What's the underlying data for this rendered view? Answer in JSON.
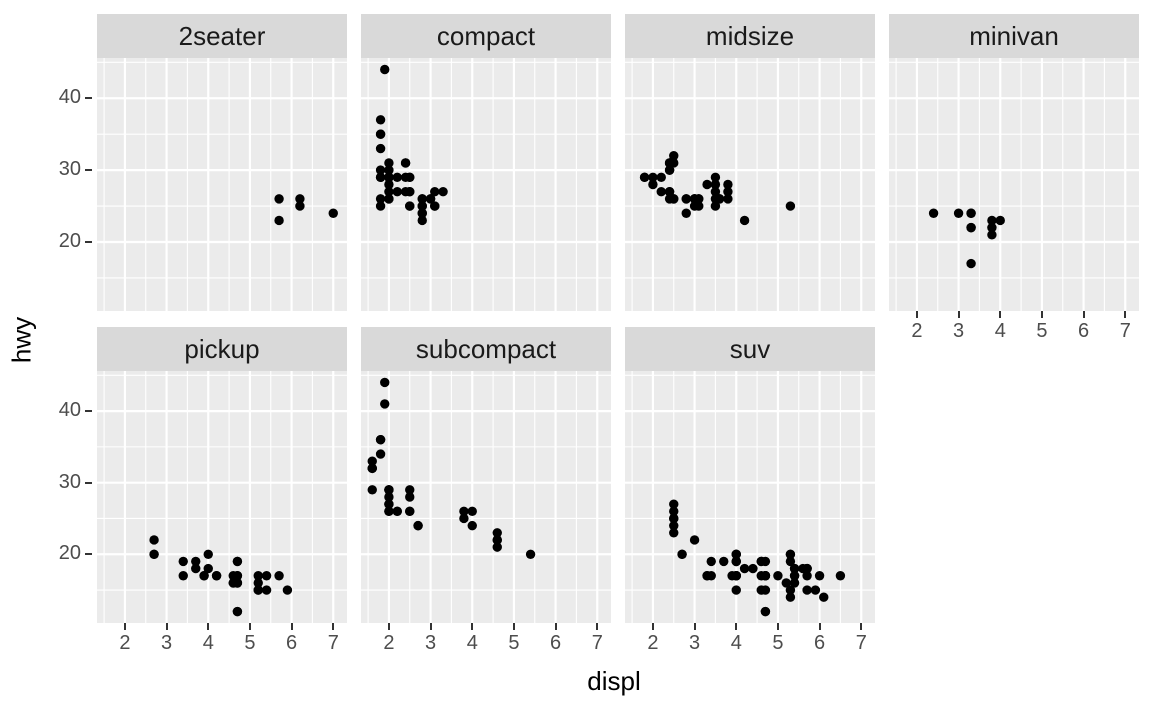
{
  "chart_data": {
    "type": "scatter",
    "title": "",
    "xlabel": "displ",
    "ylabel": "hwy",
    "facet_by": "class",
    "legend": "none",
    "grid": true,
    "xlim": [
      1.33,
      7.33
    ],
    "ylim": [
      10.4,
      45.6
    ],
    "x_ticks": [
      2,
      3,
      4,
      5,
      6,
      7
    ],
    "y_ticks": [
      20,
      30,
      40
    ],
    "x_minor_ticks": [
      1.5,
      2.5,
      3.5,
      4.5,
      5.5,
      6.5
    ],
    "y_minor_ticks": [
      15,
      25,
      35,
      45
    ],
    "facets": [
      {
        "label": "2seater",
        "points": [
          [
            5.7,
            26
          ],
          [
            5.7,
            23
          ],
          [
            6.2,
            26
          ],
          [
            6.2,
            25
          ],
          [
            7.0,
            24
          ]
        ]
      },
      {
        "label": "compact",
        "points": [
          [
            1.8,
            29
          ],
          [
            1.8,
            29
          ],
          [
            2.0,
            31
          ],
          [
            2.0,
            30
          ],
          [
            2.8,
            26
          ],
          [
            2.8,
            26
          ],
          [
            3.1,
            27
          ],
          [
            1.8,
            26
          ],
          [
            1.8,
            25
          ],
          [
            2.0,
            28
          ],
          [
            2.0,
            27
          ],
          [
            2.8,
            25
          ],
          [
            2.8,
            25
          ],
          [
            3.1,
            25
          ],
          [
            3.1,
            25
          ],
          [
            2.4,
            29
          ],
          [
            2.4,
            27
          ],
          [
            2.5,
            25
          ],
          [
            2.5,
            27
          ],
          [
            2.5,
            25
          ],
          [
            2.5,
            27
          ],
          [
            2.2,
            27
          ],
          [
            2.2,
            29
          ],
          [
            2.4,
            31
          ],
          [
            2.4,
            31
          ],
          [
            3.0,
            26
          ],
          [
            3.0,
            26
          ],
          [
            3.3,
            27
          ],
          [
            1.8,
            30
          ],
          [
            1.8,
            33
          ],
          [
            1.8,
            35
          ],
          [
            1.8,
            37
          ],
          [
            1.8,
            35
          ],
          [
            2.0,
            29
          ],
          [
            2.0,
            26
          ],
          [
            2.0,
            29
          ],
          [
            2.0,
            29
          ],
          [
            2.8,
            24
          ],
          [
            1.9,
            44
          ],
          [
            2.0,
            29
          ],
          [
            2.0,
            26
          ],
          [
            2.0,
            29
          ],
          [
            2.0,
            29
          ],
          [
            2.5,
            29
          ],
          [
            2.5,
            29
          ],
          [
            2.8,
            23
          ],
          [
            2.8,
            24
          ]
        ]
      },
      {
        "label": "midsize",
        "points": [
          [
            2.8,
            24
          ],
          [
            3.1,
            25
          ],
          [
            4.2,
            23
          ],
          [
            2.4,
            27
          ],
          [
            2.4,
            30
          ],
          [
            3.1,
            26
          ],
          [
            3.5,
            29
          ],
          [
            3.6,
            26
          ],
          [
            2.4,
            26
          ],
          [
            2.4,
            27
          ],
          [
            2.4,
            30
          ],
          [
            2.4,
            31
          ],
          [
            2.5,
            26
          ],
          [
            2.5,
            26
          ],
          [
            3.3,
            28
          ],
          [
            2.5,
            31
          ],
          [
            2.5,
            32
          ],
          [
            3.5,
            27
          ],
          [
            3.5,
            26
          ],
          [
            3.0,
            26
          ],
          [
            3.0,
            25
          ],
          [
            3.5,
            25
          ],
          [
            3.1,
            26
          ],
          [
            3.8,
            26
          ],
          [
            3.8,
            27
          ],
          [
            3.8,
            28
          ],
          [
            5.3,
            25
          ],
          [
            2.2,
            29
          ],
          [
            2.2,
            27
          ],
          [
            2.4,
            31
          ],
          [
            2.4,
            31
          ],
          [
            3.0,
            26
          ],
          [
            3.0,
            26
          ],
          [
            3.5,
            28
          ],
          [
            1.8,
            29
          ],
          [
            1.8,
            29
          ],
          [
            2.0,
            28
          ],
          [
            2.0,
            29
          ],
          [
            2.8,
            26
          ],
          [
            2.8,
            26
          ],
          [
            3.6,
            26
          ]
        ]
      },
      {
        "label": "minivan",
        "points": [
          [
            2.4,
            24
          ],
          [
            3.0,
            24
          ],
          [
            3.3,
            22
          ],
          [
            3.3,
            22
          ],
          [
            3.3,
            24
          ],
          [
            3.3,
            24
          ],
          [
            3.3,
            17
          ],
          [
            3.8,
            22
          ],
          [
            3.8,
            21
          ],
          [
            3.8,
            23
          ],
          [
            4.0,
            23
          ]
        ]
      },
      {
        "label": "pickup",
        "points": [
          [
            3.7,
            19
          ],
          [
            3.7,
            18
          ],
          [
            3.9,
            17
          ],
          [
            3.9,
            17
          ],
          [
            4.7,
            19
          ],
          [
            4.7,
            19
          ],
          [
            4.7,
            12
          ],
          [
            5.2,
            17
          ],
          [
            5.2,
            15
          ],
          [
            4.7,
            16
          ],
          [
            4.7,
            12
          ],
          [
            4.7,
            17
          ],
          [
            4.7,
            17
          ],
          [
            4.7,
            16
          ],
          [
            4.7,
            16
          ],
          [
            5.2,
            15
          ],
          [
            5.2,
            16
          ],
          [
            5.7,
            17
          ],
          [
            5.9,
            15
          ],
          [
            4.2,
            17
          ],
          [
            4.2,
            17
          ],
          [
            4.6,
            16
          ],
          [
            4.6,
            16
          ],
          [
            4.6,
            17
          ],
          [
            5.4,
            15
          ],
          [
            5.4,
            17
          ],
          [
            2.7,
            20
          ],
          [
            2.7,
            20
          ],
          [
            2.7,
            22
          ],
          [
            3.4,
            17
          ],
          [
            3.4,
            19
          ],
          [
            4.0,
            18
          ],
          [
            4.0,
            20
          ]
        ]
      },
      {
        "label": "subcompact",
        "points": [
          [
            3.8,
            26
          ],
          [
            3.8,
            25
          ],
          [
            4.0,
            26
          ],
          [
            4.0,
            24
          ],
          [
            4.6,
            21
          ],
          [
            4.6,
            22
          ],
          [
            4.6,
            23
          ],
          [
            4.6,
            22
          ],
          [
            5.4,
            20
          ],
          [
            1.6,
            33
          ],
          [
            1.6,
            32
          ],
          [
            1.6,
            32
          ],
          [
            1.6,
            29
          ],
          [
            1.6,
            32
          ],
          [
            1.8,
            34
          ],
          [
            1.8,
            36
          ],
          [
            1.8,
            36
          ],
          [
            2.0,
            29
          ],
          [
            2.0,
            26
          ],
          [
            2.0,
            29
          ],
          [
            2.0,
            28
          ],
          [
            2.0,
            27
          ],
          [
            2.0,
            27
          ],
          [
            2.7,
            24
          ],
          [
            2.7,
            24
          ],
          [
            2.2,
            26
          ],
          [
            2.2,
            26
          ],
          [
            2.5,
            26
          ],
          [
            2.5,
            26
          ],
          [
            1.9,
            44
          ],
          [
            1.9,
            41
          ],
          [
            2.0,
            29
          ],
          [
            2.0,
            26
          ],
          [
            2.5,
            28
          ],
          [
            2.5,
            29
          ]
        ]
      },
      {
        "label": "suv",
        "points": [
          [
            5.3,
            20
          ],
          [
            5.3,
            15
          ],
          [
            5.3,
            20
          ],
          [
            5.7,
            17
          ],
          [
            6.0,
            17
          ],
          [
            5.3,
            19
          ],
          [
            5.3,
            14
          ],
          [
            5.7,
            15
          ],
          [
            6.5,
            17
          ],
          [
            3.9,
            17
          ],
          [
            4.7,
            17
          ],
          [
            4.7,
            12
          ],
          [
            4.7,
            17
          ],
          [
            5.2,
            16
          ],
          [
            5.7,
            18
          ],
          [
            5.9,
            15
          ],
          [
            4.6,
            17
          ],
          [
            5.4,
            17
          ],
          [
            5.4,
            18
          ],
          [
            4.0,
            17
          ],
          [
            4.0,
            19
          ],
          [
            4.0,
            17
          ],
          [
            4.0,
            19
          ],
          [
            4.6,
            19
          ],
          [
            4.0,
            17
          ],
          [
            3.0,
            22
          ],
          [
            3.7,
            19
          ],
          [
            4.0,
            20
          ],
          [
            4.7,
            17
          ],
          [
            4.7,
            12
          ],
          [
            4.7,
            19
          ],
          [
            5.7,
            18
          ],
          [
            6.1,
            14
          ],
          [
            4.0,
            15
          ],
          [
            4.2,
            18
          ],
          [
            4.4,
            18
          ],
          [
            4.6,
            15
          ],
          [
            5.4,
            17
          ],
          [
            5.4,
            16
          ],
          [
            5.4,
            18
          ],
          [
            4.0,
            17
          ],
          [
            4.0,
            19
          ],
          [
            4.6,
            19
          ],
          [
            5.0,
            17
          ],
          [
            3.3,
            17
          ],
          [
            3.3,
            17
          ],
          [
            4.0,
            20
          ],
          [
            5.6,
            18
          ],
          [
            2.5,
            25
          ],
          [
            2.5,
            24
          ],
          [
            2.5,
            27
          ],
          [
            2.5,
            25
          ],
          [
            2.5,
            26
          ],
          [
            2.5,
            23
          ],
          [
            2.7,
            20
          ],
          [
            2.7,
            20
          ],
          [
            3.4,
            19
          ],
          [
            3.4,
            17
          ],
          [
            4.0,
            20
          ],
          [
            4.7,
            17
          ],
          [
            4.7,
            15
          ],
          [
            5.7,
            18
          ]
        ]
      }
    ]
  },
  "theme": {
    "background": "#FFFFFF",
    "panel_bg": "#EBEBEB",
    "strip_bg": "#D9D9D9",
    "strip_text_color": "#1A1A1A",
    "grid_color": "#FFFFFF",
    "point_color": "#000000",
    "tick_label_color": "#4D4D4D",
    "tick_mark_color": "#333333",
    "axis_title_color": "#000000"
  }
}
